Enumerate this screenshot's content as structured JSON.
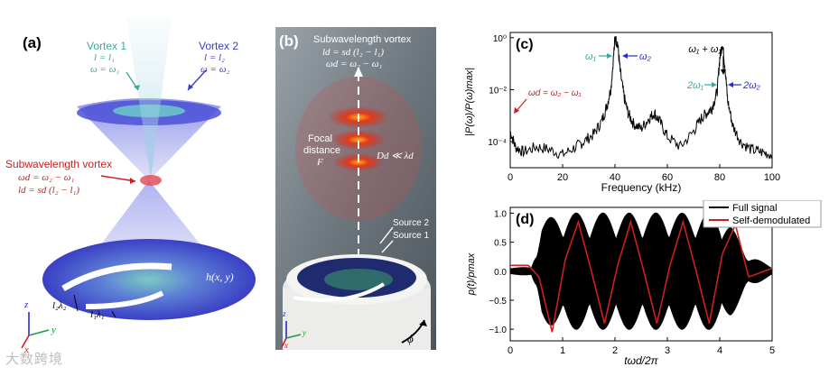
{
  "panel_a": {
    "label": "(a)",
    "vortex1": {
      "title": "Vortex 1",
      "l": "l = l₁",
      "w": "ω = ω₁"
    },
    "vortex2": {
      "title": "Vortex 2",
      "l": "l = l₂",
      "w": "ω = ω₂"
    },
    "sub": {
      "title": "Subwavelength vortex",
      "w": "ωd = ω₂ − ω₁",
      "l": "ld = sd (l₂ − l₁)"
    },
    "hxy": "h(x, y)",
    "l2lambda2": "l₂λ₂",
    "l1lambda1": "l₁λ₁",
    "axes": {
      "z": "z",
      "y": "y",
      "x": "x"
    },
    "colors": {
      "blue": "#3a3fc4",
      "teal": "#3aa8a0",
      "red": "#cc2020"
    }
  },
  "panel_b": {
    "label": "(b)",
    "title": "Subwavelength vortex",
    "ld": "ld = sd (l₂ − l₁)",
    "wd": "ωd = ω₂ − ω₁",
    "focal1": "Focal",
    "focal2": "distance",
    "focal3": "F",
    "dd": "Dd ≪ λd",
    "source2": "Source 2",
    "source1": "Source 1",
    "phi": "ϕ",
    "axes": {
      "z": "z",
      "y": "y",
      "x": "x"
    }
  },
  "chart_data": [
    {
      "type": "line",
      "panel": "(c)",
      "title": "",
      "xlabel": "Frequency (kHz)",
      "ylabel": "|P(ω)/P(ω)max|",
      "xlim": [
        0,
        100
      ],
      "ylim_log10": [
        -5,
        0.2
      ],
      "xticks": [
        "0",
        "20",
        "40",
        "60",
        "80",
        "100"
      ],
      "yticks": [
        "10⁻⁴",
        "10⁻²",
        "10⁰"
      ],
      "annotations": {
        "w1": "ω₁",
        "w2": "ω₂",
        "wsum": "ω₁ + ω₂",
        "two_w1": "2ω₁",
        "two_w2": "2ω₂",
        "wd": "ωd = ω₂ − ω₁"
      },
      "series": [
        {
          "name": "spectrum",
          "x": [
            0,
            2,
            5,
            10,
            15,
            20,
            25,
            28,
            32,
            35,
            37,
            38.5,
            40,
            41,
            42,
            43.5,
            45,
            47,
            50,
            53,
            55,
            57,
            60,
            65,
            70,
            73,
            75,
            77,
            79,
            80,
            81,
            82,
            83,
            85,
            88,
            92,
            96,
            100
          ],
          "log10y": [
            -3.6,
            -4.2,
            -4.4,
            -4.2,
            -4.3,
            -4.5,
            -4.2,
            -4.0,
            -3.7,
            -3.2,
            -2.6,
            -1.9,
            -0.05,
            -0.2,
            -1.3,
            -2.3,
            -2.9,
            -3.3,
            -3.5,
            -3.1,
            -2.9,
            -3.2,
            -3.8,
            -4.2,
            -3.6,
            -3.1,
            -2.9,
            -2.7,
            -2.1,
            -0.8,
            -0.2,
            -1.1,
            -2.4,
            -3.4,
            -4.0,
            -4.3,
            -4.4,
            -4.5
          ]
        }
      ]
    },
    {
      "type": "line",
      "panel": "(d)",
      "xlabel": "tωd/2π",
      "ylabel": "p(t)/pmax",
      "xlim": [
        0,
        5
      ],
      "ylim": [
        -1.2,
        1.1
      ],
      "xticks": [
        "0",
        "1",
        "2",
        "3",
        "4",
        "5"
      ],
      "yticks": [
        "−1.0",
        "−0.5",
        "0.0",
        "0.5",
        "1.0"
      ],
      "legend": [
        "Full signal",
        "Self-demodulated"
      ],
      "legend_position": "top-right",
      "series": [
        {
          "name": "Full signal",
          "envelope_x": [
            0,
            0.4,
            0.5,
            0.6,
            1.0,
            1.5,
            2.0,
            2.5,
            3.0,
            3.5,
            4.0,
            4.2,
            4.5,
            5.0
          ],
          "envelope_y": [
            0.05,
            0.05,
            0.4,
            0.85,
            1.0,
            0.98,
            1.0,
            0.98,
            1.0,
            0.98,
            1.0,
            0.8,
            0.3,
            0.05
          ]
        },
        {
          "name": "Self-demodulated",
          "x": [
            0,
            0.35,
            0.55,
            0.8,
            1.05,
            1.3,
            1.55,
            1.8,
            2.05,
            2.3,
            2.55,
            2.8,
            3.05,
            3.3,
            3.55,
            3.8,
            4.05,
            4.3,
            4.55,
            5.0
          ],
          "y": [
            0.1,
            0.1,
            -0.1,
            -1.05,
            0.2,
            0.85,
            0.0,
            -0.9,
            0.1,
            0.85,
            0.0,
            -0.9,
            0.1,
            0.85,
            0.0,
            -0.9,
            0.3,
            0.8,
            -0.1,
            0.05
          ]
        }
      ]
    }
  ],
  "watermark": "大数跨境"
}
